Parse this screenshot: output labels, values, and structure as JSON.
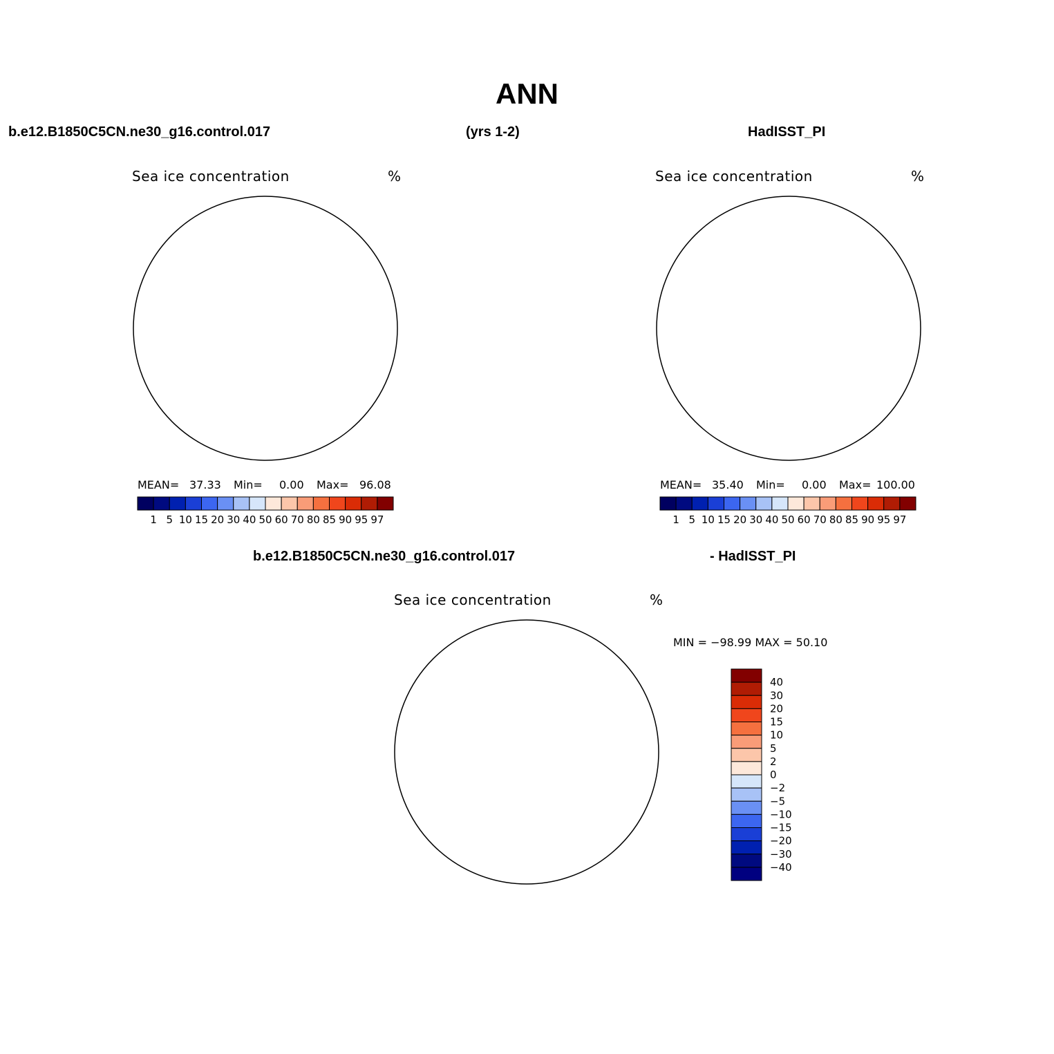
{
  "figure": {
    "title": "ANN",
    "left_header": "b.e12.B1850C5CN.ne30_g16.control.017",
    "center_header": "(yrs 1-2)",
    "right_header": "HadISST_PI",
    "diff_header_left": "b.e12.B1850C5CN.ne30_g16.control.017",
    "diff_header_right": "- HadISST_PI"
  },
  "panels": [
    {
      "id": "model",
      "title": "Sea ice concentration",
      "units": "%",
      "mean_label": "MEAN=",
      "mean": "37.33",
      "min_label": "Min=",
      "min": "0.00",
      "max_label": "Max=",
      "max": "96.08"
    },
    {
      "id": "obs",
      "title": "Sea ice concentration",
      "units": "%",
      "mean_label": "MEAN=",
      "mean": "35.40",
      "min_label": "Min=",
      "min": "0.00",
      "max_label": "Max=",
      "max": "100.00"
    },
    {
      "id": "diff",
      "title": "Sea ice concentration",
      "units": "%",
      "minmax": "MIN = −98.99 MAX =   50.10"
    }
  ],
  "colorbars": {
    "abs_levels": [
      "1",
      "5",
      "10",
      "15",
      "20",
      "30",
      "40",
      "50",
      "60",
      "70",
      "80",
      "85",
      "90",
      "95",
      "97"
    ],
    "abs_colors": [
      "#000a80",
      "#0020b0",
      "#1a3fd6",
      "#3c66f0",
      "#6a90f4",
      "#a8c2f6",
      "#d6e6fa",
      "#fde8da",
      "#fcc6aa",
      "#f99c78",
      "#f5703f",
      "#f0461c",
      "#da2c06",
      "#b01c04",
      "#820000"
    ],
    "diff_levels": [
      "40",
      "30",
      "20",
      "15",
      "10",
      "5",
      "2",
      "0",
      "−2",
      "−5",
      "−10",
      "−15",
      "−20",
      "−30",
      "−40"
    ],
    "diff_colors": [
      "#820000",
      "#b01c04",
      "#da2c06",
      "#f0461c",
      "#f5703f",
      "#f99c78",
      "#fcc6aa",
      "#fde8da",
      "#d6e6fa",
      "#a8c2f6",
      "#6a90f4",
      "#3c66f0",
      "#1a3fd6",
      "#0020b0",
      "#000a80",
      "#000080"
    ]
  }
}
